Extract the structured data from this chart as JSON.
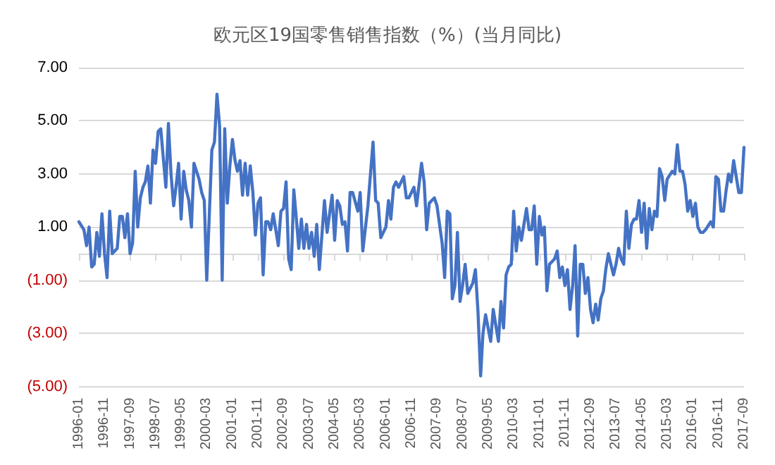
{
  "chart_data": {
    "type": "line",
    "title": "欧元区19国零售销售指数（%）(当月同比)",
    "x": [
      "1996-01",
      "1996-03",
      "1996-04",
      "1996-05",
      "1996-06",
      "1996-07",
      "1996-08",
      "1996-09",
      "1996-10",
      "1996-11",
      "1996-12",
      "1997-01",
      "1997-02",
      "1997-04",
      "1997-05",
      "1997-06",
      "1997-07",
      "1997-08",
      "1997-09",
      "1997-10",
      "1997-11",
      "1997-12",
      "1998-01",
      "1998-02",
      "1998-03",
      "1998-04",
      "1998-05",
      "1998-06",
      "1998-07",
      "1998-08",
      "1998-09",
      "1998-10",
      "1998-11",
      "1998-12",
      "1999-01",
      "1999-02",
      "1999-03",
      "1999-04",
      "1999-05",
      "1999-06",
      "1999-07",
      "1999-08",
      "1999-09",
      "1999-10",
      "1999-12",
      "2000-01",
      "2000-02",
      "2000-03",
      "2000-04",
      "2000-05",
      "2000-06",
      "2000-07",
      "2000-08",
      "2000-09",
      "2000-10",
      "2000-11",
      "2000-12",
      "2001-01",
      "2001-02",
      "2001-03",
      "2001-04",
      "2001-05",
      "2001-06",
      "2001-07",
      "2001-08",
      "2001-09",
      "2001-10",
      "2001-11",
      "2001-12",
      "2002-01",
      "2002-02",
      "2002-03",
      "2002-04",
      "2002-05",
      "2002-07",
      "2002-08",
      "2002-09",
      "2002-10",
      "2002-11",
      "2002-12",
      "2003-01",
      "2003-02",
      "2003-03",
      "2003-04",
      "2003-05",
      "2003-06",
      "2003-07",
      "2003-08",
      "2003-09",
      "2003-10",
      "2003-11",
      "2004-01",
      "2004-02",
      "2004-04",
      "2004-05",
      "2004-06",
      "2004-07",
      "2004-08",
      "2004-09",
      "2004-10",
      "2004-11",
      "2004-12",
      "2005-02",
      "2005-03",
      "2005-04",
      "2005-06",
      "2005-08",
      "2005-09",
      "2005-10",
      "2005-11",
      "2006-01",
      "2006-02",
      "2006-03",
      "2006-04",
      "2006-05",
      "2006-06",
      "2006-08",
      "2006-09",
      "2006-10",
      "2006-12",
      "2007-01",
      "2007-03",
      "2007-04",
      "2007-05",
      "2007-06",
      "2007-08",
      "2007-09",
      "2007-10",
      "2007-11",
      "2007-12",
      "2008-01",
      "2008-02",
      "2008-03",
      "2008-04",
      "2008-05",
      "2008-06",
      "2008-07",
      "2008-08",
      "2008-09",
      "2008-11",
      "2008-12",
      "2009-01",
      "2009-02",
      "2009-03",
      "2009-04",
      "2009-06",
      "2009-07",
      "2009-08",
      "2009-09",
      "2009-10",
      "2009-11",
      "2009-12",
      "2010-01",
      "2010-02",
      "2010-03",
      "2010-04",
      "2010-05",
      "2010-06",
      "2010-08",
      "2010-09",
      "2010-10",
      "2010-11",
      "2010-12",
      "2011-01",
      "2011-02",
      "2011-03",
      "2011-04",
      "2011-05",
      "2011-07",
      "2011-08",
      "2011-09",
      "2011-10",
      "2011-11",
      "2011-12",
      "2012-01",
      "2012-02",
      "2012-03",
      "2012-04",
      "2012-05",
      "2012-06",
      "2012-07",
      "2012-08",
      "2012-09",
      "2012-10",
      "2012-11",
      "2012-12",
      "2013-01",
      "2013-02",
      "2013-03",
      "2013-04",
      "2013-06",
      "2013-07",
      "2013-08",
      "2013-09",
      "2013-10",
      "2013-11",
      "2013-12",
      "2014-01",
      "2014-02",
      "2014-03",
      "2014-04",
      "2014-05",
      "2014-06",
      "2014-07",
      "2014-08",
      "2014-09",
      "2014-10",
      "2014-11",
      "2014-12",
      "2015-01",
      "2015-02",
      "2015-03",
      "2015-05",
      "2015-06",
      "2015-07",
      "2015-08",
      "2015-09",
      "2015-10",
      "2015-11",
      "2015-12",
      "2016-01",
      "2016-02",
      "2016-03",
      "2016-04",
      "2016-05",
      "2016-06",
      "2016-08",
      "2016-09",
      "2016-10",
      "2016-11",
      "2016-12",
      "2017-01",
      "2017-02",
      "2017-03",
      "2017-04",
      "2017-05",
      "2017-07",
      "2017-08",
      "2017-09"
    ],
    "series": [
      {
        "color": "#4472c4",
        "values": [
          1.2,
          0.9,
          0.3,
          1.0,
          -0.5,
          -0.4,
          0.8,
          -0.1,
          1.5,
          0.0,
          -0.9,
          1.6,
          0.0,
          0.2,
          1.4,
          1.4,
          0.6,
          1.5,
          0.0,
          0.4,
          3.1,
          1.0,
          2.1,
          2.5,
          2.7,
          3.3,
          1.9,
          3.9,
          3.4,
          4.6,
          4.7,
          3.6,
          2.5,
          4.9,
          3.0,
          1.8,
          2.5,
          3.4,
          1.3,
          3.1,
          2.4,
          2.0,
          1.0,
          3.4,
          2.8,
          2.3,
          2.0,
          -1.0,
          1.5,
          3.9,
          4.2,
          6.0,
          4.8,
          -1.0,
          4.7,
          1.9,
          3.3,
          4.3,
          3.5,
          3.1,
          3.5,
          2.2,
          3.4,
          2.2,
          3.3,
          2.3,
          0.7,
          1.9,
          2.1,
          -0.8,
          1.2,
          1.2,
          0.9,
          1.5,
          0.3,
          1.6,
          1.7,
          2.7,
          -0.2,
          -0.6,
          2.4,
          1.3,
          0.2,
          1.3,
          0.2,
          1.1,
          0.2,
          0.8,
          -0.1,
          1.1,
          -0.6,
          2.0,
          0.8,
          2.2,
          0.5,
          2.0,
          1.8,
          1.1,
          1.2,
          0.1,
          2.3,
          2.3,
          1.6,
          2.3,
          0.1,
          1.8,
          4.2,
          2.0,
          1.9,
          0.6,
          1.0,
          2.0,
          1.3,
          2.5,
          2.7,
          2.5,
          2.9,
          2.1,
          2.1,
          2.5,
          1.8,
          3.4,
          2.7,
          0.9,
          1.9,
          2.1,
          1.8,
          1.1,
          0.4,
          -0.9,
          1.6,
          1.5,
          -1.7,
          -1.2,
          0.8,
          -1.8,
          -1.2,
          -0.4,
          -1.5,
          -1.1,
          -0.6,
          -2.2,
          -4.6,
          -3.0,
          -2.3,
          -3.3,
          -2.1,
          -2.7,
          -3.3,
          -1.8,
          -2.8,
          -0.8,
          -0.5,
          -0.4,
          1.6,
          0.1,
          1.0,
          0.5,
          1.7,
          0.9,
          0.9,
          1.8,
          -0.4,
          1.4,
          0.7,
          1.0,
          -1.4,
          -0.4,
          -0.2,
          0.1,
          -0.9,
          -0.5,
          -1.2,
          -0.6,
          -2.1,
          -1.2,
          0.3,
          -3.1,
          -0.4,
          -0.4,
          -1.5,
          -0.9,
          -2.1,
          -2.6,
          -1.9,
          -2.5,
          -1.7,
          -1.4,
          -0.6,
          0.0,
          -0.8,
          -0.4,
          0.2,
          -0.2,
          -0.4,
          1.6,
          0.2,
          1.1,
          1.3,
          1.3,
          2.0,
          0.8,
          1.9,
          0.2,
          1.7,
          0.9,
          1.6,
          1.4,
          3.2,
          2.9,
          2.0,
          2.8,
          3.1,
          3.0,
          4.1,
          3.1,
          3.1,
          2.6,
          1.6,
          2.0,
          1.4,
          1.9,
          1.0,
          0.8,
          0.8,
          0.9,
          1.2,
          1.0,
          2.9,
          2.8,
          1.6,
          1.6,
          2.4,
          3.0,
          2.7,
          3.5,
          2.3,
          2.3,
          4.0
        ]
      }
    ],
    "xlim": [
      "1996-01",
      "2017-09"
    ],
    "xticks": [
      "1996-01",
      "1996-11",
      "1997-09",
      "1998-07",
      "1999-05",
      "2000-03",
      "2001-01",
      "2001-11",
      "2002-09",
      "2003-07",
      "2004-05",
      "2005-03",
      "2006-01",
      "2006-11",
      "2007-09",
      "2008-07",
      "2009-05",
      "2010-03",
      "2011-01",
      "2011-11",
      "2012-09",
      "2013-07",
      "2014-05",
      "2015-03",
      "2016-01",
      "2016-11",
      "2017-09"
    ],
    "ylim": [
      -5,
      7
    ],
    "yticks": [
      {
        "value": -5,
        "label": "(5.00)"
      },
      {
        "value": -3,
        "label": "(3.00)"
      },
      {
        "value": -1,
        "label": "(1.00)"
      },
      {
        "value": 1,
        "label": "1.00"
      },
      {
        "value": 3,
        "label": "3.00"
      },
      {
        "value": 5,
        "label": "5.00"
      },
      {
        "value": 7,
        "label": "7.00"
      }
    ],
    "grid": "y",
    "marker": "none",
    "line_style": "solid"
  }
}
